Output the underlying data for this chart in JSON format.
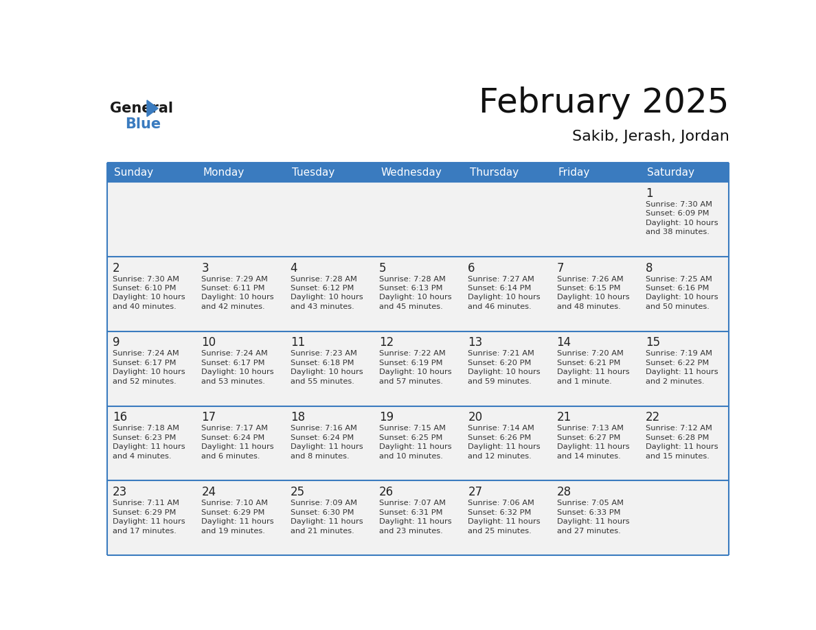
{
  "title": "February 2025",
  "subtitle": "Sakib, Jerash, Jordan",
  "header_color": "#3a7bbf",
  "header_text_color": "#ffffff",
  "day_names": [
    "Sunday",
    "Monday",
    "Tuesday",
    "Wednesday",
    "Thursday",
    "Friday",
    "Saturday"
  ],
  "background_color": "#ffffff",
  "separator_color": "#3a7bbf",
  "days": [
    {
      "day": 1,
      "col": 6,
      "row": 0,
      "sunrise": "7:30 AM",
      "sunset": "6:09 PM",
      "daylight_line1": "10 hours",
      "daylight_line2": "and 38 minutes."
    },
    {
      "day": 2,
      "col": 0,
      "row": 1,
      "sunrise": "7:30 AM",
      "sunset": "6:10 PM",
      "daylight_line1": "10 hours",
      "daylight_line2": "and 40 minutes."
    },
    {
      "day": 3,
      "col": 1,
      "row": 1,
      "sunrise": "7:29 AM",
      "sunset": "6:11 PM",
      "daylight_line1": "10 hours",
      "daylight_line2": "and 42 minutes."
    },
    {
      "day": 4,
      "col": 2,
      "row": 1,
      "sunrise": "7:28 AM",
      "sunset": "6:12 PM",
      "daylight_line1": "10 hours",
      "daylight_line2": "and 43 minutes."
    },
    {
      "day": 5,
      "col": 3,
      "row": 1,
      "sunrise": "7:28 AM",
      "sunset": "6:13 PM",
      "daylight_line1": "10 hours",
      "daylight_line2": "and 45 minutes."
    },
    {
      "day": 6,
      "col": 4,
      "row": 1,
      "sunrise": "7:27 AM",
      "sunset": "6:14 PM",
      "daylight_line1": "10 hours",
      "daylight_line2": "and 46 minutes."
    },
    {
      "day": 7,
      "col": 5,
      "row": 1,
      "sunrise": "7:26 AM",
      "sunset": "6:15 PM",
      "daylight_line1": "10 hours",
      "daylight_line2": "and 48 minutes."
    },
    {
      "day": 8,
      "col": 6,
      "row": 1,
      "sunrise": "7:25 AM",
      "sunset": "6:16 PM",
      "daylight_line1": "10 hours",
      "daylight_line2": "and 50 minutes."
    },
    {
      "day": 9,
      "col": 0,
      "row": 2,
      "sunrise": "7:24 AM",
      "sunset": "6:17 PM",
      "daylight_line1": "10 hours",
      "daylight_line2": "and 52 minutes."
    },
    {
      "day": 10,
      "col": 1,
      "row": 2,
      "sunrise": "7:24 AM",
      "sunset": "6:17 PM",
      "daylight_line1": "10 hours",
      "daylight_line2": "and 53 minutes."
    },
    {
      "day": 11,
      "col": 2,
      "row": 2,
      "sunrise": "7:23 AM",
      "sunset": "6:18 PM",
      "daylight_line1": "10 hours",
      "daylight_line2": "and 55 minutes."
    },
    {
      "day": 12,
      "col": 3,
      "row": 2,
      "sunrise": "7:22 AM",
      "sunset": "6:19 PM",
      "daylight_line1": "10 hours",
      "daylight_line2": "and 57 minutes."
    },
    {
      "day": 13,
      "col": 4,
      "row": 2,
      "sunrise": "7:21 AM",
      "sunset": "6:20 PM",
      "daylight_line1": "10 hours",
      "daylight_line2": "and 59 minutes."
    },
    {
      "day": 14,
      "col": 5,
      "row": 2,
      "sunrise": "7:20 AM",
      "sunset": "6:21 PM",
      "daylight_line1": "11 hours",
      "daylight_line2": "and 1 minute."
    },
    {
      "day": 15,
      "col": 6,
      "row": 2,
      "sunrise": "7:19 AM",
      "sunset": "6:22 PM",
      "daylight_line1": "11 hours",
      "daylight_line2": "and 2 minutes."
    },
    {
      "day": 16,
      "col": 0,
      "row": 3,
      "sunrise": "7:18 AM",
      "sunset": "6:23 PM",
      "daylight_line1": "11 hours",
      "daylight_line2": "and 4 minutes."
    },
    {
      "day": 17,
      "col": 1,
      "row": 3,
      "sunrise": "7:17 AM",
      "sunset": "6:24 PM",
      "daylight_line1": "11 hours",
      "daylight_line2": "and 6 minutes."
    },
    {
      "day": 18,
      "col": 2,
      "row": 3,
      "sunrise": "7:16 AM",
      "sunset": "6:24 PM",
      "daylight_line1": "11 hours",
      "daylight_line2": "and 8 minutes."
    },
    {
      "day": 19,
      "col": 3,
      "row": 3,
      "sunrise": "7:15 AM",
      "sunset": "6:25 PM",
      "daylight_line1": "11 hours",
      "daylight_line2": "and 10 minutes."
    },
    {
      "day": 20,
      "col": 4,
      "row": 3,
      "sunrise": "7:14 AM",
      "sunset": "6:26 PM",
      "daylight_line1": "11 hours",
      "daylight_line2": "and 12 minutes."
    },
    {
      "day": 21,
      "col": 5,
      "row": 3,
      "sunrise": "7:13 AM",
      "sunset": "6:27 PM",
      "daylight_line1": "11 hours",
      "daylight_line2": "and 14 minutes."
    },
    {
      "day": 22,
      "col": 6,
      "row": 3,
      "sunrise": "7:12 AM",
      "sunset": "6:28 PM",
      "daylight_line1": "11 hours",
      "daylight_line2": "and 15 minutes."
    },
    {
      "day": 23,
      "col": 0,
      "row": 4,
      "sunrise": "7:11 AM",
      "sunset": "6:29 PM",
      "daylight_line1": "11 hours",
      "daylight_line2": "and 17 minutes."
    },
    {
      "day": 24,
      "col": 1,
      "row": 4,
      "sunrise": "7:10 AM",
      "sunset": "6:29 PM",
      "daylight_line1": "11 hours",
      "daylight_line2": "and 19 minutes."
    },
    {
      "day": 25,
      "col": 2,
      "row": 4,
      "sunrise": "7:09 AM",
      "sunset": "6:30 PM",
      "daylight_line1": "11 hours",
      "daylight_line2": "and 21 minutes."
    },
    {
      "day": 26,
      "col": 3,
      "row": 4,
      "sunrise": "7:07 AM",
      "sunset": "6:31 PM",
      "daylight_line1": "11 hours",
      "daylight_line2": "and 23 minutes."
    },
    {
      "day": 27,
      "col": 4,
      "row": 4,
      "sunrise": "7:06 AM",
      "sunset": "6:32 PM",
      "daylight_line1": "11 hours",
      "daylight_line2": "and 25 minutes."
    },
    {
      "day": 28,
      "col": 5,
      "row": 4,
      "sunrise": "7:05 AM",
      "sunset": "6:33 PM",
      "daylight_line1": "11 hours",
      "daylight_line2": "and 27 minutes."
    }
  ],
  "num_rows": 5,
  "num_cols": 7,
  "fig_width": 11.88,
  "fig_height": 9.18,
  "title_fontsize": 36,
  "subtitle_fontsize": 16,
  "header_fontsize": 11,
  "day_num_fontsize": 12,
  "info_fontsize": 8.2
}
